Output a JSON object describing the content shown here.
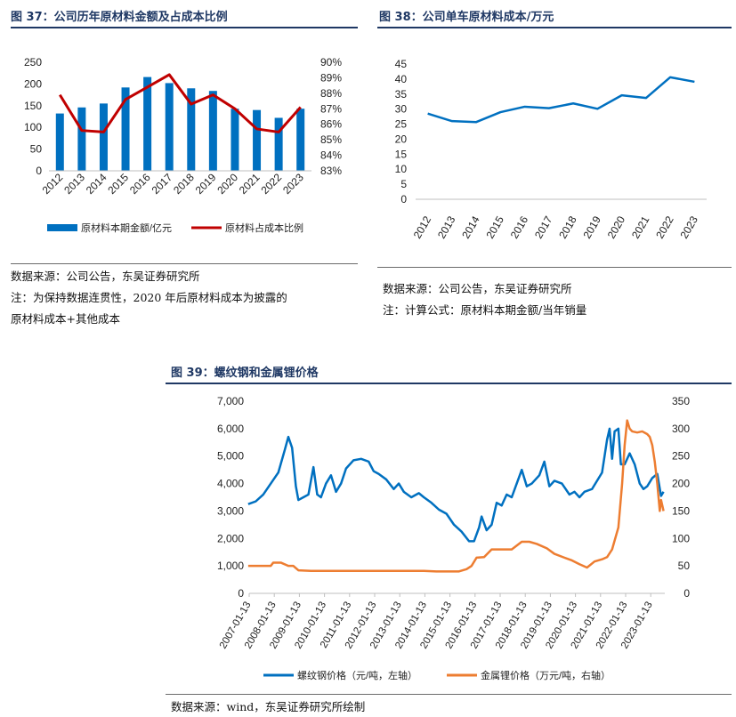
{
  "fig37": {
    "title": "图 37：公司历年原材料金额及占成本比例",
    "source": "数据来源：公司公告，东吴证券研究所",
    "note1": "注：为保持数据连贯性，2020 年后原材料成本为披露的",
    "note2": "原材料成本+其他成本"
  },
  "fig38": {
    "title": "图 38：公司单车原材料成本/万元",
    "source": "数据来源：公司公告，东吴证券研究所",
    "note": "注：计算公式：原材料本期金额/当年销量"
  },
  "fig39": {
    "title": "图 39：螺纹钢和金属锂价格",
    "source": "数据来源：wind，东吴证券研究所绘制"
  },
  "colors": {
    "blue": "#0070c0",
    "red": "#c00000",
    "orange": "#ed7d31",
    "title": "#1f3864"
  },
  "chart_data": [
    {
      "id": "fig37",
      "type": "bar+line",
      "categories": [
        "2012",
        "2013",
        "2014",
        "2015",
        "2016",
        "2017",
        "2018",
        "2019",
        "2020",
        "2021",
        "2022",
        "2023"
      ],
      "y_left": {
        "ticks": [
          "0",
          "50",
          "100",
          "150",
          "200",
          "250"
        ],
        "ylim": [
          0,
          250
        ]
      },
      "y_right": {
        "ticks": [
          "83%",
          "84%",
          "85%",
          "86%",
          "87%",
          "88%",
          "89%",
          "90%"
        ],
        "ylim": [
          83,
          90
        ]
      },
      "series": [
        {
          "name": "原材料本期金额/亿元",
          "type": "bar",
          "axis": "left",
          "values": [
            132,
            146,
            155,
            192,
            216,
            202,
            190,
            184,
            143,
            140,
            122,
            143
          ]
        },
        {
          "name": "原材料占成本比例",
          "type": "line",
          "axis": "right",
          "values": [
            87.9,
            85.6,
            85.5,
            87.6,
            88.4,
            89.2,
            87.3,
            87.9,
            87.0,
            85.7,
            85.5,
            87.1
          ]
        }
      ]
    },
    {
      "id": "fig38",
      "type": "line",
      "categories": [
        "2012",
        "2013",
        "2014",
        "2015",
        "2016",
        "2017",
        "2018",
        "2019",
        "2020",
        "2021",
        "2022",
        "2023"
      ],
      "ylim": [
        0,
        45
      ],
      "y_ticks": [
        "0",
        "5",
        "10",
        "15",
        "20",
        "25",
        "30",
        "35",
        "40",
        "45"
      ],
      "series": [
        {
          "values": [
            28.5,
            26.0,
            25.7,
            29.0,
            30.8,
            30.3,
            31.9,
            30.1,
            34.6,
            33.7,
            40.6,
            39.1
          ]
        }
      ]
    },
    {
      "id": "fig39",
      "type": "line",
      "x_ticks": [
        "2007-01-13",
        "2008-01-13",
        "2009-01-13",
        "2010-01-13",
        "2011-01-13",
        "2012-01-13",
        "2013-01-13",
        "2014-01-13",
        "2015-01-13",
        "2016-01-13",
        "2017-01-13",
        "2018-01-13",
        "2019-01-13",
        "2020-01-13",
        "2021-01-13",
        "2022-01-13",
        "2023-01-13"
      ],
      "xlim": [
        2007.04,
        2023.6
      ],
      "y_left": {
        "ticks": [
          "0",
          "1,000",
          "2,000",
          "3,000",
          "4,000",
          "5,000",
          "6,000",
          "7,000"
        ],
        "ylim": [
          0,
          7000
        ]
      },
      "y_right": {
        "ticks": [
          "0",
          "50",
          "100",
          "150",
          "200",
          "250",
          "300",
          "350"
        ],
        "ylim": [
          0,
          350
        ]
      },
      "series": [
        {
          "name": "螺纹钢价格（元/吨，左轴）",
          "axis": "left",
          "points": [
            [
              2007.0,
              3250
            ],
            [
              2007.3,
              3350
            ],
            [
              2007.6,
              3600
            ],
            [
              2007.9,
              4000
            ],
            [
              2008.2,
              4400
            ],
            [
              2008.45,
              5200
            ],
            [
              2008.6,
              5700
            ],
            [
              2008.75,
              5300
            ],
            [
              2008.9,
              3900
            ],
            [
              2009.0,
              3400
            ],
            [
              2009.2,
              3500
            ],
            [
              2009.4,
              3600
            ],
            [
              2009.6,
              4600
            ],
            [
              2009.75,
              3600
            ],
            [
              2009.9,
              3500
            ],
            [
              2010.1,
              4000
            ],
            [
              2010.3,
              4300
            ],
            [
              2010.5,
              3700
            ],
            [
              2010.7,
              4000
            ],
            [
              2010.9,
              4550
            ],
            [
              2011.2,
              4850
            ],
            [
              2011.5,
              4900
            ],
            [
              2011.8,
              4800
            ],
            [
              2012.0,
              4450
            ],
            [
              2012.2,
              4350
            ],
            [
              2012.5,
              4150
            ],
            [
              2012.8,
              3800
            ],
            [
              2013.0,
              4000
            ],
            [
              2013.2,
              3700
            ],
            [
              2013.5,
              3500
            ],
            [
              2013.8,
              3650
            ],
            [
              2014.0,
              3500
            ],
            [
              2014.3,
              3300
            ],
            [
              2014.6,
              3050
            ],
            [
              2014.9,
              2900
            ],
            [
              2015.2,
              2500
            ],
            [
              2015.5,
              2250
            ],
            [
              2015.8,
              1900
            ],
            [
              2016.0,
              1900
            ],
            [
              2016.2,
              2400
            ],
            [
              2016.3,
              2800
            ],
            [
              2016.5,
              2300
            ],
            [
              2016.7,
              2500
            ],
            [
              2016.9,
              3300
            ],
            [
              2017.1,
              3200
            ],
            [
              2017.3,
              3600
            ],
            [
              2017.5,
              3500
            ],
            [
              2017.7,
              4000
            ],
            [
              2017.9,
              4500
            ],
            [
              2018.1,
              3900
            ],
            [
              2018.3,
              4000
            ],
            [
              2018.6,
              4300
            ],
            [
              2018.8,
              4800
            ],
            [
              2019.0,
              3900
            ],
            [
              2019.2,
              4100
            ],
            [
              2019.5,
              4000
            ],
            [
              2019.8,
              3600
            ],
            [
              2020.0,
              3700
            ],
            [
              2020.2,
              3500
            ],
            [
              2020.4,
              3700
            ],
            [
              2020.7,
              3800
            ],
            [
              2020.9,
              4100
            ],
            [
              2021.1,
              4400
            ],
            [
              2021.3,
              5600
            ],
            [
              2021.4,
              6000
            ],
            [
              2021.5,
              4900
            ],
            [
              2021.6,
              5900
            ],
            [
              2021.75,
              6000
            ],
            [
              2021.85,
              4700
            ],
            [
              2022.0,
              4700
            ],
            [
              2022.2,
              5100
            ],
            [
              2022.4,
              4700
            ],
            [
              2022.6,
              4000
            ],
            [
              2022.75,
              3800
            ],
            [
              2022.9,
              3900
            ],
            [
              2023.1,
              4200
            ],
            [
              2023.3,
              4350
            ],
            [
              2023.45,
              3550
            ],
            [
              2023.55,
              3700
            ]
          ]
        },
        {
          "name": "金属锂价格（万元/吨，右轴）",
          "axis": "right",
          "points": [
            [
              2007.0,
              50
            ],
            [
              2007.9,
              50
            ],
            [
              2008.0,
              56
            ],
            [
              2008.3,
              56
            ],
            [
              2008.6,
              50
            ],
            [
              2008.8,
              50
            ],
            [
              2009.0,
              42
            ],
            [
              2009.5,
              41
            ],
            [
              2010.0,
              41
            ],
            [
              2011.0,
              41
            ],
            [
              2012.0,
              41
            ],
            [
              2013.0,
              41
            ],
            [
              2014.0,
              41
            ],
            [
              2014.5,
              40
            ],
            [
              2015.0,
              40
            ],
            [
              2015.4,
              40
            ],
            [
              2015.7,
              44
            ],
            [
              2015.9,
              50
            ],
            [
              2016.1,
              65
            ],
            [
              2016.4,
              66
            ],
            [
              2016.7,
              80
            ],
            [
              2017.2,
              80
            ],
            [
              2017.5,
              80
            ],
            [
              2017.9,
              94
            ],
            [
              2018.2,
              94
            ],
            [
              2018.5,
              90
            ],
            [
              2018.9,
              82
            ],
            [
              2019.2,
              72
            ],
            [
              2019.6,
              65
            ],
            [
              2019.9,
              60
            ],
            [
              2020.2,
              53
            ],
            [
              2020.5,
              47
            ],
            [
              2020.8,
              58
            ],
            [
              2021.1,
              62
            ],
            [
              2021.3,
              66
            ],
            [
              2021.5,
              80
            ],
            [
              2021.75,
              120
            ],
            [
              2021.9,
              200
            ],
            [
              2022.0,
              270
            ],
            [
              2022.1,
              315
            ],
            [
              2022.2,
              300
            ],
            [
              2022.3,
              295
            ],
            [
              2022.5,
              293
            ],
            [
              2022.7,
              295
            ],
            [
              2022.9,
              290
            ],
            [
              2023.0,
              285
            ],
            [
              2023.1,
              270
            ],
            [
              2023.2,
              240
            ],
            [
              2023.3,
              200
            ],
            [
              2023.4,
              150
            ],
            [
              2023.45,
              170
            ],
            [
              2023.55,
              150
            ]
          ]
        }
      ]
    }
  ]
}
